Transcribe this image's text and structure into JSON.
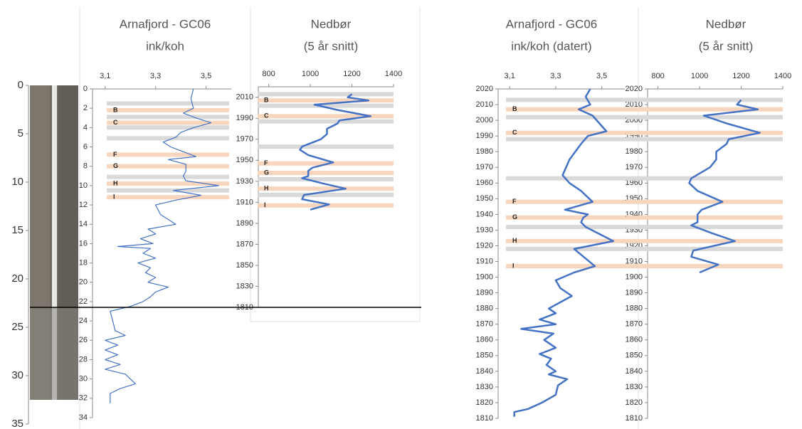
{
  "chart_data": [
    {
      "type": "core",
      "ylim": [
        0,
        35
      ],
      "yticks": [
        0,
        5,
        10,
        15,
        20,
        25,
        30,
        35
      ],
      "y_inverted": true
    },
    {
      "type": "line",
      "title": "Arnafjord - GC06",
      "subtitle": "ink/koh",
      "color": "#4472c4",
      "line_width": 1.2,
      "xlim": [
        3.05,
        3.6
      ],
      "xticks": [
        {
          "value": 3.1,
          "label": "3,1"
        },
        {
          "value": 3.3,
          "label": "3,3"
        },
        {
          "value": 3.5,
          "label": "3,5"
        }
      ],
      "ylim": [
        0,
        34
      ],
      "yticks": [
        0,
        2,
        4,
        6,
        8,
        10,
        12,
        14,
        16,
        18,
        20,
        22,
        24,
        26,
        28,
        30,
        32,
        34
      ],
      "y_inverted": true,
      "x": [
        3.45,
        3.44,
        3.45,
        3.41,
        3.46,
        3.52,
        3.45,
        3.4,
        3.38,
        3.33,
        3.36,
        3.41,
        3.46,
        3.35,
        3.42,
        3.42,
        3.41,
        3.42,
        3.55,
        3.37,
        3.48,
        3.38,
        3.3,
        3.32,
        3.38,
        3.27,
        3.3,
        3.24,
        3.29,
        3.15,
        3.28,
        3.25,
        3.3,
        3.23,
        3.28,
        3.26,
        3.3,
        3.27,
        3.35,
        3.3,
        3.28,
        3.25,
        3.2,
        3.12,
        3.13,
        3.14,
        3.18,
        3.1,
        3.15,
        3.1,
        3.15,
        3.1,
        3.16,
        3.1,
        3.18,
        3.22,
        3.16,
        3.12,
        3.12
      ],
      "y": [
        0,
        1,
        2,
        2.5,
        3,
        3.5,
        4,
        4.5,
        5,
        5.5,
        6,
        6.5,
        7,
        7.3,
        7.8,
        8.5,
        9,
        9.5,
        10,
        10.5,
        11,
        11.5,
        12,
        13,
        14,
        14.5,
        15,
        15.5,
        16,
        16.3,
        16.5,
        17,
        17.5,
        18,
        18.5,
        19,
        19.5,
        20,
        20.5,
        21,
        21.5,
        22,
        22.5,
        23,
        24,
        25,
        25.5,
        26,
        26.5,
        27,
        27.5,
        28,
        28.5,
        29,
        29.5,
        30.5,
        31,
        31.5,
        32.5
      ],
      "bands": [
        {
          "y": 1.5,
          "color": "#d9d9d9"
        },
        {
          "y": 2.2,
          "color": "#f8d5bd",
          "label": "B"
        },
        {
          "y": 2.9,
          "color": "#d9d9d9"
        },
        {
          "y": 3.5,
          "color": "#f8d5bd",
          "label": "C"
        },
        {
          "y": 4.0,
          "color": "#d9d9d9"
        },
        {
          "y": 5.1,
          "color": "#d9d9d9"
        },
        {
          "y": 6.8,
          "color": "#f8d5bd",
          "label": "F"
        },
        {
          "y": 8.0,
          "color": "#f8d5bd",
          "label": "G"
        },
        {
          "y": 9.1,
          "color": "#d9d9d9"
        },
        {
          "y": 9.8,
          "color": "#f8d5bd",
          "label": "H"
        },
        {
          "y": 10.5,
          "color": "#d9d9d9"
        },
        {
          "y": 11.2,
          "color": "#f8d5bd",
          "label": "I"
        }
      ]
    },
    {
      "type": "line",
      "title": "Nedbør",
      "subtitle": "(5 år snitt)",
      "color": "#4472c4",
      "line_width": 2.5,
      "xlim": [
        750,
        1400
      ],
      "xticks": [
        800,
        1000,
        1200,
        1400
      ],
      "ylim": [
        1810,
        2020
      ],
      "yticks": [
        1810,
        1830,
        1850,
        1870,
        1890,
        1910,
        1930,
        1950,
        1970,
        1990,
        2010
      ],
      "y_inverted": false,
      "x": [
        1200,
        1180,
        1280,
        1020,
        1130,
        1290,
        1140,
        1130,
        1080,
        1080,
        1050,
        960,
        950,
        990,
        1110,
        1010,
        990,
        990,
        960,
        1060,
        1170,
        970,
        960,
        1090,
        1000
      ],
      "y": [
        2013,
        2010,
        2007,
        2003,
        1998,
        1992,
        1988,
        1985,
        1980,
        1975,
        1970,
        1963,
        1960,
        1955,
        1948,
        1943,
        1940,
        1935,
        1933,
        1928,
        1923,
        1917,
        1913,
        1908,
        1903
      ],
      "bands": [
        {
          "y": 2013,
          "color": "#d9d9d9"
        },
        {
          "y": 2007,
          "color": "#f8d5bd",
          "label": "B"
        },
        {
          "y": 2002,
          "color": "#d9d9d9"
        },
        {
          "y": 1992,
          "color": "#f8d5bd",
          "label": "C"
        },
        {
          "y": 1987,
          "color": "#d9d9d9"
        },
        {
          "y": 1963,
          "color": "#d9d9d9"
        },
        {
          "y": 1947,
          "color": "#f8d5bd",
          "label": "F"
        },
        {
          "y": 1938,
          "color": "#f8d5bd",
          "label": "G"
        },
        {
          "y": 1932,
          "color": "#d9d9d9"
        },
        {
          "y": 1923,
          "color": "#f8d5bd",
          "label": "H"
        },
        {
          "y": 1917,
          "color": "#d9d9d9"
        },
        {
          "y": 1907,
          "color": "#f8d5bd",
          "label": "I"
        }
      ]
    },
    {
      "type": "line",
      "title": "Arnafjord - GC06",
      "subtitle": "ink/koh (datert)",
      "color": "#4472c4",
      "line_width": 2.5,
      "xlim": [
        3.05,
        3.6
      ],
      "xticks": [
        {
          "value": 3.1,
          "label": "3,1"
        },
        {
          "value": 3.3,
          "label": "3,3"
        },
        {
          "value": 3.5,
          "label": "3,5"
        }
      ],
      "ylim": [
        1810,
        2020
      ],
      "yticks": [
        1810,
        1820,
        1830,
        1840,
        1850,
        1860,
        1870,
        1880,
        1890,
        1900,
        1910,
        1920,
        1930,
        1940,
        1950,
        1960,
        1970,
        1980,
        1990,
        2000,
        2010,
        2020
      ],
      "y_inverted": false,
      "x": [
        3.45,
        3.43,
        3.45,
        3.4,
        3.46,
        3.52,
        3.44,
        3.41,
        3.36,
        3.33,
        3.36,
        3.41,
        3.46,
        3.34,
        3.44,
        3.42,
        3.41,
        3.43,
        3.55,
        3.38,
        3.47,
        3.38,
        3.3,
        3.32,
        3.37,
        3.27,
        3.3,
        3.23,
        3.3,
        3.15,
        3.29,
        3.25,
        3.3,
        3.23,
        3.28,
        3.26,
        3.3,
        3.27,
        3.35,
        3.31,
        3.3,
        3.24,
        3.18,
        3.12,
        3.12
      ],
      "y": [
        2020,
        2015,
        2010,
        2007,
        2003,
        1993,
        1990,
        1985,
        1975,
        1965,
        1960,
        1955,
        1948,
        1943,
        1940,
        1938,
        1935,
        1932,
        1923,
        1918,
        1907,
        1903,
        1898,
        1893,
        1888,
        1880,
        1877,
        1873,
        1870,
        1867,
        1864,
        1860,
        1855,
        1851,
        1848,
        1844,
        1840,
        1838,
        1835,
        1831,
        1825,
        1820,
        1816,
        1814,
        1811
      ],
      "bands": [
        {
          "y": 2013,
          "color": "#d9d9d9"
        },
        {
          "y": 2007,
          "color": "#f8d5bd",
          "label": "B"
        },
        {
          "y": 2002,
          "color": "#d9d9d9"
        },
        {
          "y": 1992,
          "color": "#f8d5bd",
          "label": "C"
        },
        {
          "y": 1988,
          "color": "#d9d9d9"
        },
        {
          "y": 1963,
          "color": "#d9d9d9"
        },
        {
          "y": 1948,
          "color": "#f8d5bd",
          "label": "F"
        },
        {
          "y": 1938,
          "color": "#f8d5bd",
          "label": "G"
        },
        {
          "y": 1932,
          "color": "#d9d9d9"
        },
        {
          "y": 1923,
          "color": "#f8d5bd",
          "label": "H"
        },
        {
          "y": 1918,
          "color": "#d9d9d9"
        },
        {
          "y": 1907,
          "color": "#f8d5bd",
          "label": "I"
        }
      ]
    },
    {
      "type": "line",
      "title": "Nedbør",
      "subtitle": "(5 år snitt)",
      "color": "#4472c4",
      "line_width": 2.5,
      "xlim": [
        750,
        1400
      ],
      "xticks": [
        800,
        1000,
        1200,
        1400
      ],
      "ylim": [
        1810,
        2020
      ],
      "yticks": [
        1810,
        1820,
        1830,
        1840,
        1850,
        1860,
        1870,
        1880,
        1890,
        1900,
        1910,
        1920,
        1930,
        1940,
        1950,
        1960,
        1970,
        1980,
        1990,
        2000,
        2010,
        2020
      ],
      "y_inverted": false,
      "x": [
        1200,
        1180,
        1280,
        1020,
        1130,
        1290,
        1140,
        1130,
        1080,
        1080,
        1050,
        960,
        950,
        990,
        1110,
        1010,
        990,
        990,
        960,
        1060,
        1170,
        970,
        960,
        1090,
        1000
      ],
      "y": [
        2013,
        2010,
        2007,
        2003,
        1998,
        1992,
        1988,
        1985,
        1980,
        1975,
        1970,
        1963,
        1960,
        1955,
        1948,
        1943,
        1940,
        1935,
        1933,
        1928,
        1923,
        1917,
        1913,
        1908,
        1903
      ],
      "bands": [
        {
          "y": 2013,
          "color": "#d9d9d9"
        },
        {
          "y": 2007,
          "color": "#f8d5bd"
        },
        {
          "y": 2002,
          "color": "#d9d9d9"
        },
        {
          "y": 1992,
          "color": "#f8d5bd"
        },
        {
          "y": 1988,
          "color": "#d9d9d9"
        },
        {
          "y": 1963,
          "color": "#d9d9d9"
        },
        {
          "y": 1948,
          "color": "#f8d5bd"
        },
        {
          "y": 1938,
          "color": "#f8d5bd"
        },
        {
          "y": 1932,
          "color": "#d9d9d9"
        },
        {
          "y": 1923,
          "color": "#f8d5bd"
        },
        {
          "y": 1918,
          "color": "#d9d9d9"
        },
        {
          "y": 1907,
          "color": "#f8d5bd"
        }
      ]
    }
  ]
}
